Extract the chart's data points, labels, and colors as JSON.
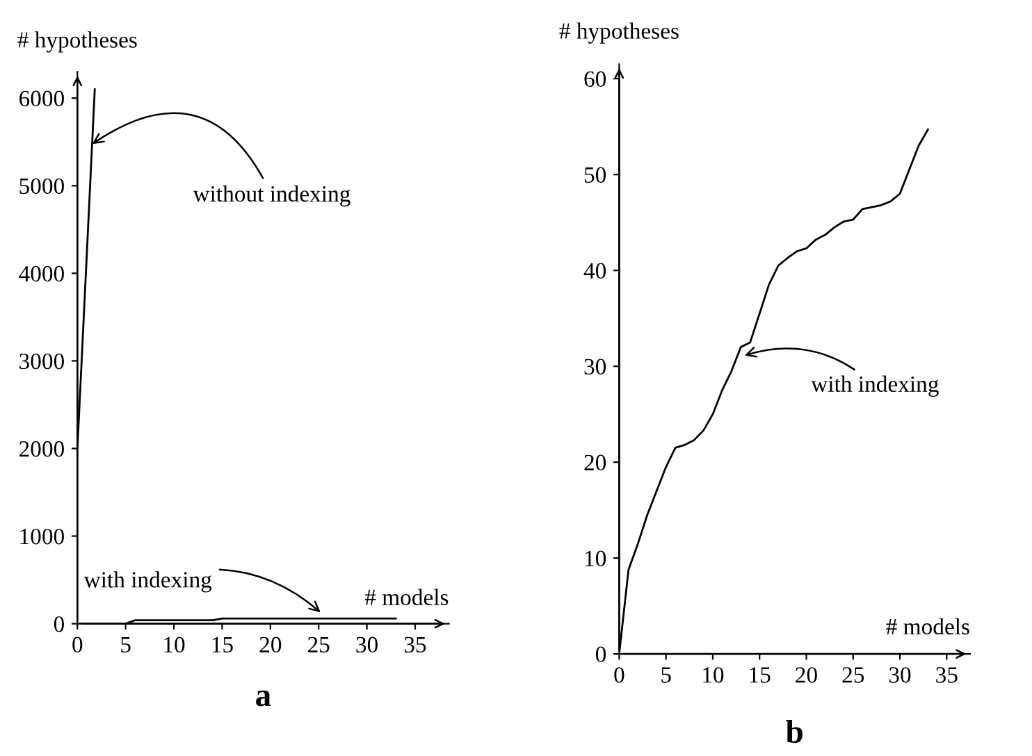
{
  "chart_data": [
    {
      "type": "line",
      "title": "a",
      "xlabel": "# models",
      "ylabel": "# hypotheses",
      "series": [
        {
          "color": "#000000",
          "x": [
            0,
            1.8
          ],
          "values": [
            2000,
            6100
          ]
        },
        {
          "color": "#000000",
          "x": [
            0,
            5,
            6,
            14,
            15,
            33
          ],
          "values": [
            0,
            0,
            40,
            40,
            60,
            60
          ]
        }
      ],
      "annotations": [
        {
          "text": "without indexing",
          "x": 1.2,
          "y": 5450
        },
        {
          "text": "with indexing",
          "x": 25.5,
          "y": 100
        }
      ],
      "xlim": [
        0,
        38.5
      ],
      "ylim": [
        0,
        6300
      ],
      "xticks": [
        0,
        5,
        10,
        15,
        20,
        25,
        30,
        35
      ],
      "yticks": [
        0,
        1000,
        2000,
        3000,
        4000,
        5000,
        6000
      ],
      "grid": false,
      "legend": false
    },
    {
      "type": "line",
      "title": "b",
      "xlabel": "# models",
      "ylabel": "# hypotheses",
      "series": [
        {
          "color": "#000000",
          "x": [
            0,
            1,
            2,
            3,
            4,
            5,
            6,
            7,
            8,
            9,
            10,
            11,
            12,
            13,
            14,
            15,
            16,
            17,
            18,
            19,
            20,
            21,
            22,
            23,
            24,
            25,
            26,
            27,
            28,
            29,
            30,
            31,
            32,
            33
          ],
          "values": [
            0,
            8.8,
            11.5,
            14.5,
            17,
            19.5,
            21.5,
            21.8,
            22.3,
            23.3,
            25,
            27.5,
            29.5,
            32,
            32.5,
            35.5,
            38.5,
            40.5,
            41.3,
            42,
            42.3,
            43.2,
            43.7,
            44.5,
            45.1,
            45.3,
            46.4,
            46.6,
            46.8,
            47.2,
            48,
            50.5,
            53,
            54.7
          ]
        }
      ],
      "annotations": [
        {
          "text": "with indexing",
          "x": 13,
          "y": 31
        }
      ],
      "xlim": [
        0,
        37.5
      ],
      "ylim": [
        0,
        61.5
      ],
      "xticks": [
        0,
        5,
        10,
        15,
        20,
        25,
        30,
        35
      ],
      "yticks": [
        0,
        10,
        20,
        30,
        40,
        50,
        60
      ],
      "grid": false,
      "legend": false
    }
  ]
}
